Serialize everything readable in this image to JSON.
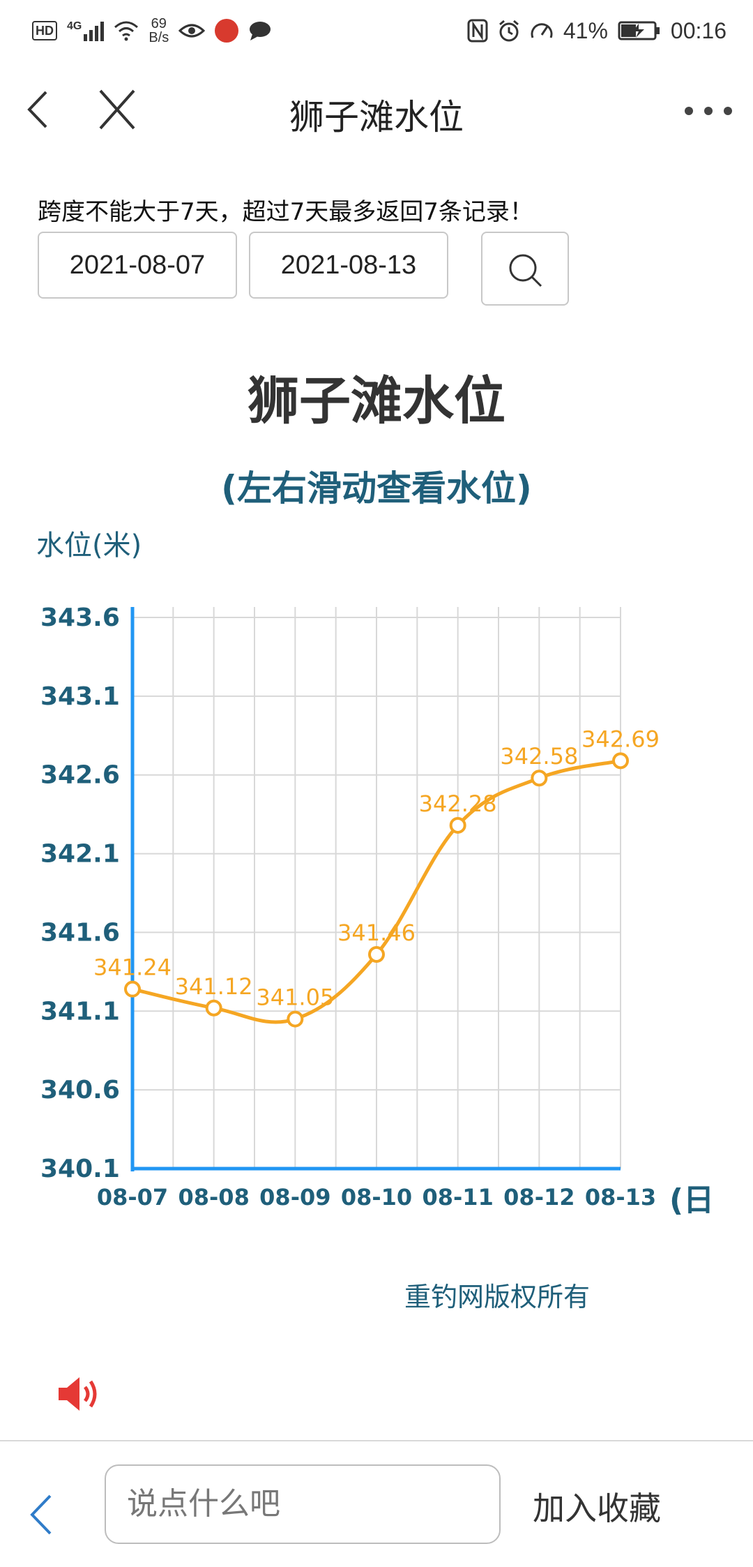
{
  "status": {
    "left_badge": "HD",
    "net_type": "4G",
    "speed_value": "69",
    "speed_unit": "B/s",
    "battery": "41%",
    "time": "00:16"
  },
  "nav": {
    "title": "狮子滩水位"
  },
  "form": {
    "notice": "跨度不能大于7天，超过7天最多返回7条记录！",
    "start_date": "2021-08-07",
    "end_date": "2021-08-13"
  },
  "chart_data": {
    "type": "line",
    "title": "狮子滩水位",
    "subtitle": "(左右滑动查看水位)",
    "ylabel": "水位(米)",
    "xlabel": "(日",
    "categories": [
      "08-07",
      "08-08",
      "08-09",
      "08-10",
      "08-11",
      "08-12",
      "08-13"
    ],
    "series": [
      {
        "values": [
          341.24,
          341.12,
          341.05,
          341.46,
          342.28,
          342.58,
          342.69
        ]
      }
    ],
    "value_labels": [
      "341.24",
      "341.12",
      "341.05",
      "341.46",
      "342.28",
      "342.58",
      "342.69"
    ],
    "yticks": [
      "343.6",
      "343.1",
      "342.6",
      "342.1",
      "341.6",
      "341.1",
      "340.6",
      "340.1"
    ],
    "ylim": [
      340.1,
      343.6
    ],
    "grid": true,
    "colors": {
      "line": "#f5a623",
      "axis": "#2196f3",
      "ticks": "#1f5f7a",
      "grid": "#d8d8d8"
    }
  },
  "footer": {
    "copyright": "重钓网版权所有"
  },
  "bottom": {
    "input_placeholder": "说点什么吧",
    "favorite_label": "加入收藏"
  },
  "icons": {
    "back": "back-arrow-icon",
    "close": "close-icon",
    "more": "more-dots-icon",
    "search": "search-icon",
    "speaker": "speaker-icon"
  }
}
